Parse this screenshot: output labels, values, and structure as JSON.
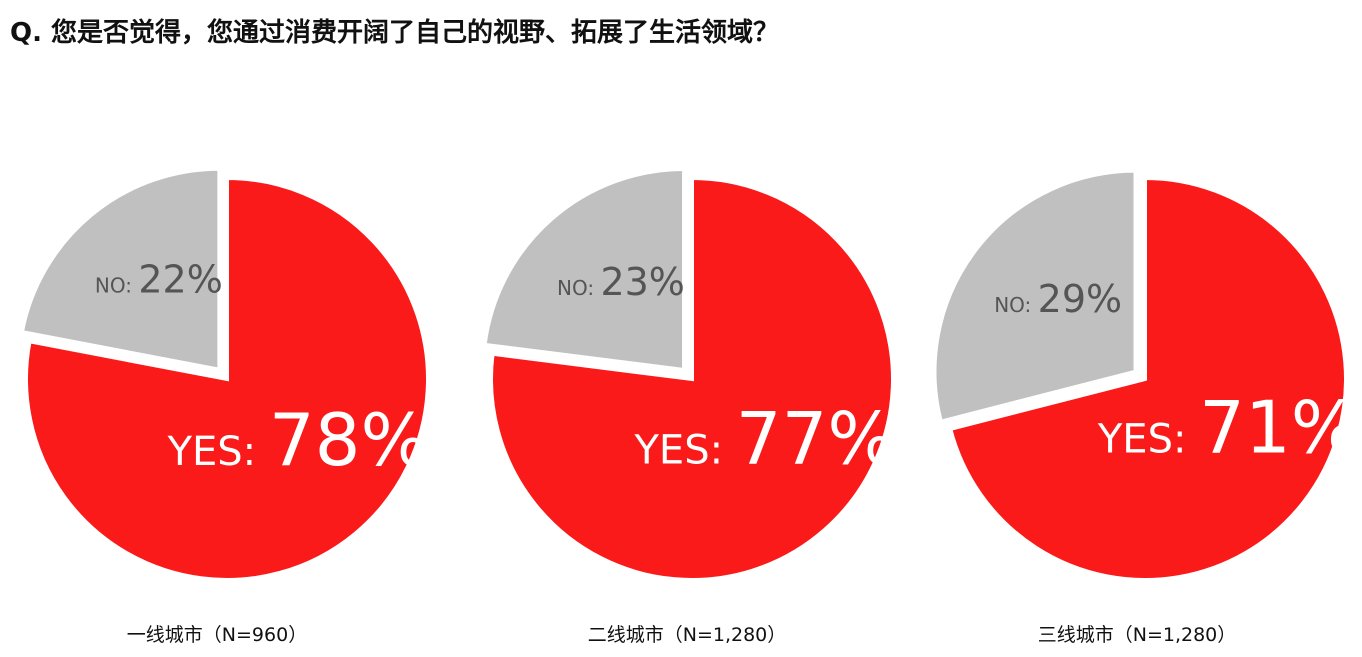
{
  "question": "Q. 您是否觉得，您通过消费开阔了自己的视野、拓展了生活领域？",
  "colors": {
    "yes": "#fa1a1a",
    "no": "#c0c0c0",
    "gap": "#ffffff",
    "yes_text": "#ffffff",
    "no_text": "#555555"
  },
  "chart_data": [
    {
      "type": "pie",
      "caption": "一线城市（N=960）",
      "slices": [
        {
          "label": "YES",
          "value": 78,
          "display": "78%"
        },
        {
          "label": "NO",
          "value": 22,
          "display": "22%"
        }
      ]
    },
    {
      "type": "pie",
      "caption": "二线城市（N=1,280）",
      "slices": [
        {
          "label": "YES",
          "value": 77,
          "display": "77%"
        },
        {
          "label": "NO",
          "value": 23,
          "display": "23%"
        }
      ]
    },
    {
      "type": "pie",
      "caption": "三线城市（N=1,280）",
      "slices": [
        {
          "label": "YES",
          "value": 71,
          "display": "71%"
        },
        {
          "label": "NO",
          "value": 29,
          "display": "29%"
        }
      ]
    }
  ]
}
